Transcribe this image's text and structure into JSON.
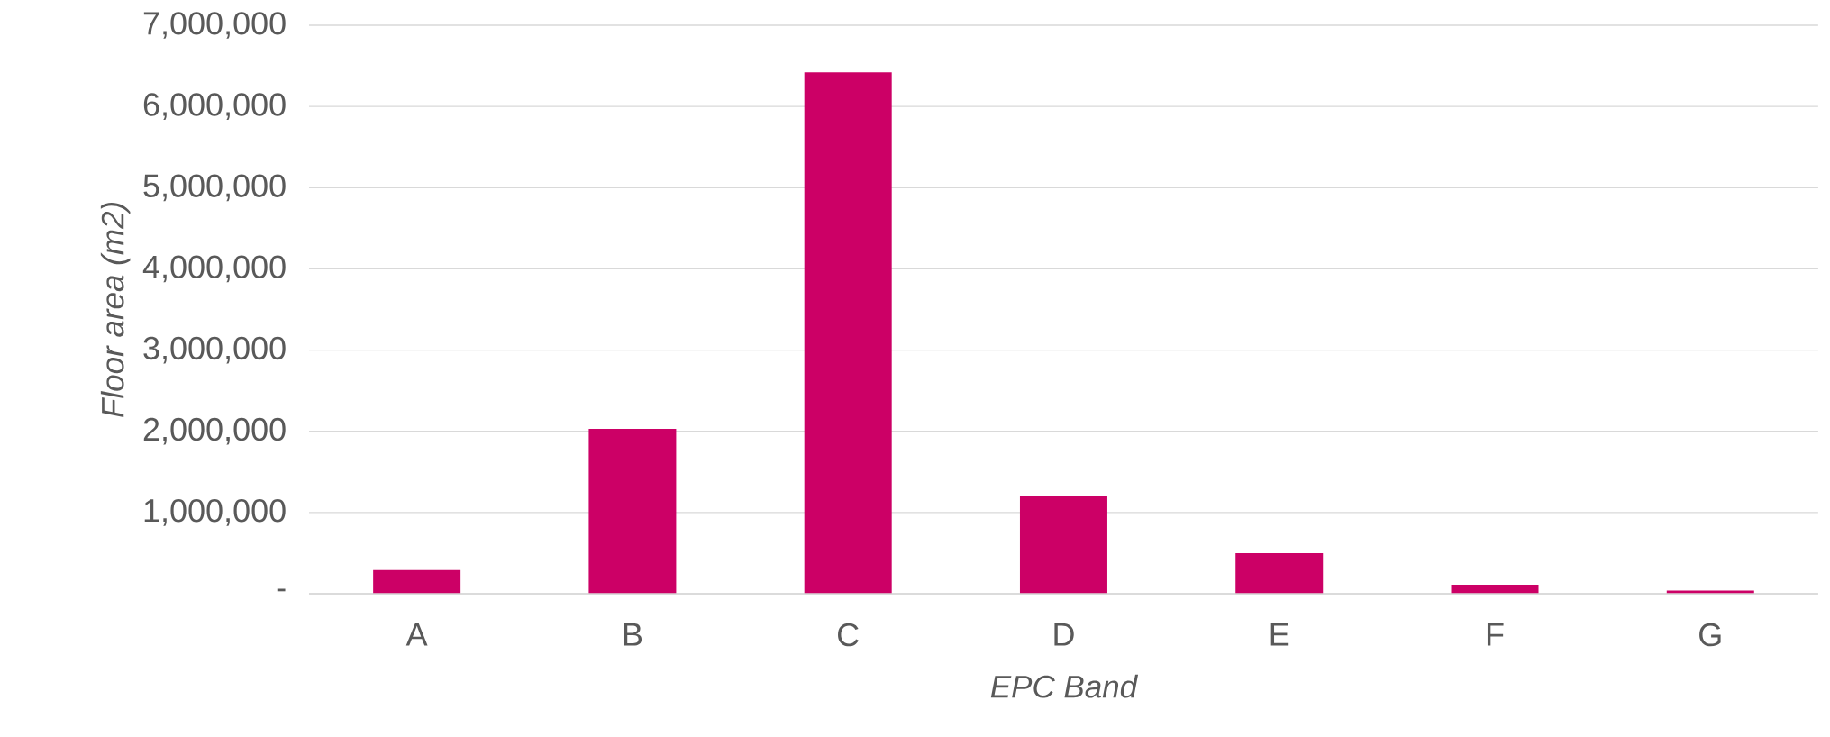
{
  "chart_data": {
    "type": "bar",
    "xlabel": "EPC Band",
    "ylabel": "Floor area (m2)",
    "categories": [
      "A",
      "B",
      "C",
      "D",
      "E",
      "F",
      "G"
    ],
    "values": [
      290000,
      2030000,
      6420000,
      1210000,
      500000,
      110000,
      40000
    ],
    "color": "#cc0066",
    "ylim": [
      0,
      7000000
    ],
    "yticks": [
      {
        "value": 0,
        "label": "-"
      },
      {
        "value": 1000000,
        "label": "1,000,000"
      },
      {
        "value": 2000000,
        "label": "2,000,000"
      },
      {
        "value": 3000000,
        "label": "3,000,000"
      },
      {
        "value": 4000000,
        "label": "4,000,000"
      },
      {
        "value": 5000000,
        "label": "5,000,000"
      },
      {
        "value": 6000000,
        "label": "6,000,000"
      },
      {
        "value": 7000000,
        "label": "7,000,000"
      }
    ],
    "grid": "y"
  }
}
